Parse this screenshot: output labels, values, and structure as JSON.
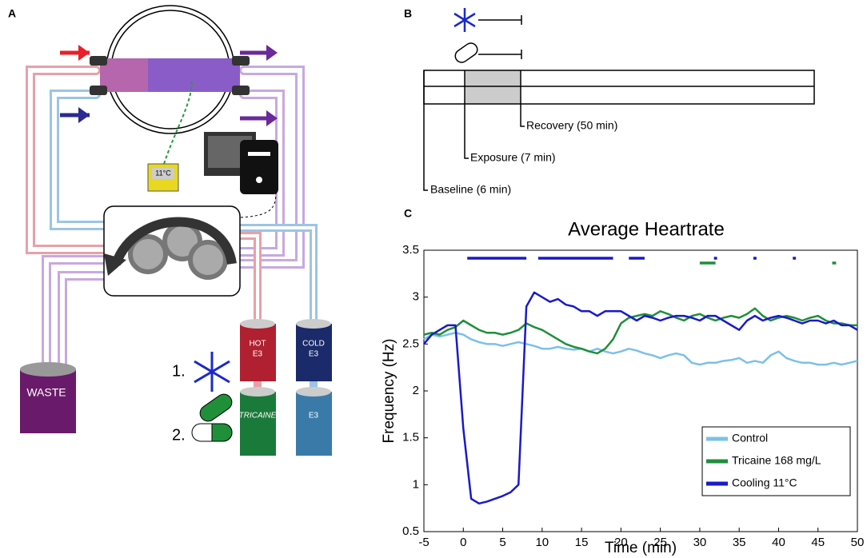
{
  "panel_labels": [
    "A",
    "B",
    "C"
  ],
  "diagram": {
    "temperature": "11°C",
    "steps": [
      "1.",
      "2."
    ],
    "tanks": [
      {
        "name": "HOT",
        "medium": "E3"
      },
      {
        "name": "COLD",
        "medium": "E3"
      },
      {
        "name": "TRICAINE"
      },
      {
        "name": "E3"
      },
      {
        "name": "WASTE"
      }
    ]
  },
  "timeline": {
    "phases": [
      "Baseline (6 min)",
      "Exposure (7 min)",
      "Recovery (50 min)"
    ]
  },
  "chart_data": {
    "type": "line",
    "title": "Average Heartrate",
    "x_label": "Time (min)",
    "y_label": "Frequency (Hz)",
    "xlim": [
      -5,
      50
    ],
    "ylim": [
      0.5,
      3.5
    ],
    "xticks": [
      -5,
      0,
      5,
      10,
      15,
      20,
      25,
      30,
      35,
      40,
      45,
      50
    ],
    "yticks": [
      0.5,
      1,
      1.5,
      2,
      2.5,
      3,
      3.5
    ],
    "legend": "lower right",
    "grid": false,
    "x": [
      -5,
      -4,
      -3,
      -2,
      -1,
      0,
      1,
      2,
      3,
      4,
      5,
      6,
      7,
      8,
      9,
      10,
      11,
      12,
      13,
      14,
      15,
      16,
      17,
      18,
      19,
      20,
      21,
      22,
      23,
      24,
      25,
      26,
      27,
      28,
      29,
      30,
      31,
      32,
      33,
      34,
      35,
      36,
      37,
      38,
      39,
      40,
      41,
      42,
      43,
      44,
      45,
      46,
      47,
      48,
      49,
      50
    ],
    "series": [
      {
        "name": "Control",
        "color": "#7cc0e8",
        "values": [
          2.55,
          2.6,
          2.58,
          2.6,
          2.62,
          2.6,
          2.55,
          2.52,
          2.5,
          2.5,
          2.48,
          2.5,
          2.52,
          2.5,
          2.48,
          2.45,
          2.45,
          2.47,
          2.45,
          2.44,
          2.45,
          2.42,
          2.45,
          2.42,
          2.4,
          2.42,
          2.45,
          2.43,
          2.4,
          2.38,
          2.35,
          2.38,
          2.4,
          2.38,
          2.3,
          2.28,
          2.3,
          2.3,
          2.32,
          2.33,
          2.35,
          2.3,
          2.32,
          2.3,
          2.38,
          2.42,
          2.35,
          2.32,
          2.3,
          2.3,
          2.28,
          2.28,
          2.3,
          2.28,
          2.3,
          2.32
        ]
      },
      {
        "name": "Tricaine 168 mg/L",
        "color": "#1f8f3a",
        "values": [
          2.6,
          2.62,
          2.6,
          2.65,
          2.68,
          2.75,
          2.7,
          2.65,
          2.62,
          2.62,
          2.6,
          2.62,
          2.65,
          2.72,
          2.68,
          2.65,
          2.6,
          2.55,
          2.5,
          2.47,
          2.45,
          2.42,
          2.4,
          2.45,
          2.55,
          2.72,
          2.78,
          2.8,
          2.82,
          2.8,
          2.85,
          2.82,
          2.78,
          2.75,
          2.8,
          2.82,
          2.78,
          2.75,
          2.78,
          2.8,
          2.78,
          2.82,
          2.88,
          2.8,
          2.75,
          2.78,
          2.8,
          2.78,
          2.75,
          2.78,
          2.8,
          2.75,
          2.72,
          2.72,
          2.7,
          2.7
        ]
      },
      {
        "name": "Cooling 11°C",
        "color": "#1a1ac8",
        "values": [
          2.5,
          2.6,
          2.65,
          2.7,
          2.7,
          1.6,
          0.85,
          0.8,
          0.82,
          0.85,
          0.88,
          0.92,
          1.0,
          2.9,
          3.05,
          3.0,
          2.95,
          2.98,
          2.92,
          2.9,
          2.85,
          2.85,
          2.8,
          2.85,
          2.85,
          2.85,
          2.8,
          2.75,
          2.8,
          2.78,
          2.75,
          2.78,
          2.8,
          2.8,
          2.78,
          2.75,
          2.8,
          2.8,
          2.75,
          2.7,
          2.65,
          2.75,
          2.8,
          2.75,
          2.78,
          2.8,
          2.78,
          2.75,
          2.72,
          2.75,
          2.75,
          2.72,
          2.75,
          2.7,
          2.7,
          2.65
        ]
      }
    ],
    "significance": [
      {
        "color": "#1a1ac8",
        "x": [
          0.5,
          8
        ]
      },
      {
        "color": "#1a1ac8",
        "x": [
          9.5,
          19
        ]
      },
      {
        "color": "#1a1ac8",
        "x": [
          21,
          23
        ]
      },
      {
        "color": "#1f8f3a",
        "x": [
          30,
          32
        ]
      },
      {
        "color": "#1a1ac8",
        "x": [
          31.8,
          32.2
        ]
      },
      {
        "color": "#1a1ac8",
        "x": [
          36.8,
          37.2
        ]
      },
      {
        "color": "#1a1ac8",
        "x": [
          41.8,
          42.2
        ]
      },
      {
        "color": "#1f8f3a",
        "x": [
          46.8,
          47.3
        ]
      }
    ]
  }
}
